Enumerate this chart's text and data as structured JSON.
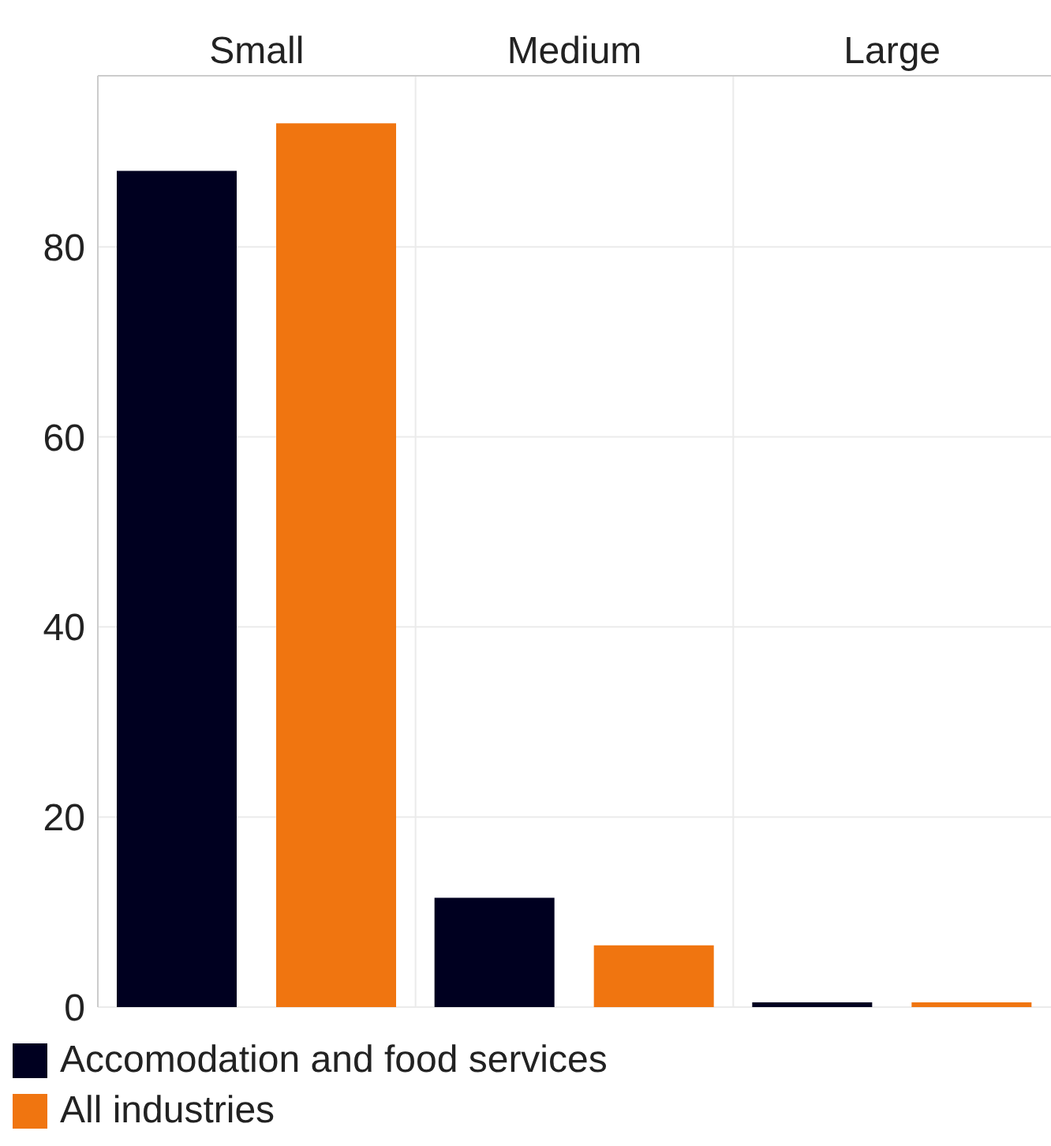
{
  "chart_data": {
    "type": "bar",
    "categories": [
      "Small",
      "Medium",
      "Large"
    ],
    "series": [
      {
        "name": "Accomodation and food services",
        "color": "#000020",
        "values": [
          88,
          11.5,
          0.5
        ]
      },
      {
        "name": "All industries",
        "color": "#f07510",
        "values": [
          93,
          6.5,
          0.5
        ]
      }
    ],
    "ylim": [
      0,
      98
    ],
    "yticks": [
      0,
      20,
      40,
      60,
      80
    ],
    "grid": "y",
    "legend": "bottom"
  }
}
